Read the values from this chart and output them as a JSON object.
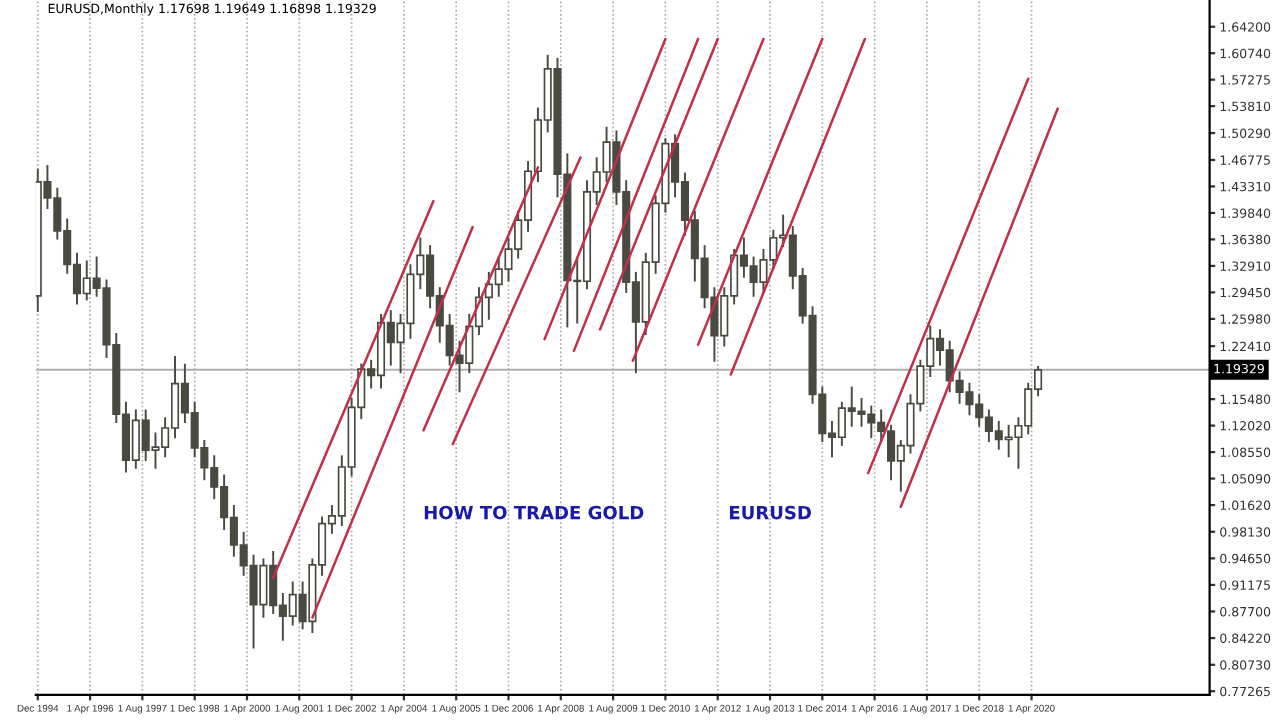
{
  "chart_data": {
    "type": "candlestick",
    "title": "EURUSD,Monthly 1.17698 1.19649 1.16898 1.19329",
    "annotations": [
      "HOW TO TRADE GOLD",
      "EURUSD"
    ],
    "color": "#4a4a40",
    "x": [
      "1994-12",
      "1995-03",
      "1995-06",
      "1995-09",
      "1995-12",
      "1996-03",
      "1996-06",
      "1996-09",
      "1996-12",
      "1997-03",
      "1997-06",
      "1997-09",
      "1997-12",
      "1998-03",
      "1998-06",
      "1998-09",
      "1998-12",
      "1999-03",
      "1999-06",
      "1999-09",
      "1999-12",
      "2000-03",
      "2000-06",
      "2000-09",
      "2000-12",
      "2001-03",
      "2001-06",
      "2001-09",
      "2001-12",
      "2002-03",
      "2002-06",
      "2002-09",
      "2002-12",
      "2003-03",
      "2003-06",
      "2003-09",
      "2003-12",
      "2004-03",
      "2004-06",
      "2004-09",
      "2004-12",
      "2005-03",
      "2005-06",
      "2005-09",
      "2005-12",
      "2006-03",
      "2006-06",
      "2006-09",
      "2006-12",
      "2007-03",
      "2007-06",
      "2007-09",
      "2007-12",
      "2008-03",
      "2008-06",
      "2008-09",
      "2008-12",
      "2009-03",
      "2009-06",
      "2009-09",
      "2009-12",
      "2010-03",
      "2010-06",
      "2010-09",
      "2010-12",
      "2011-03",
      "2011-06",
      "2011-09",
      "2011-12",
      "2012-03",
      "2012-06",
      "2012-09",
      "2012-12",
      "2013-03",
      "2013-06",
      "2013-09",
      "2013-12",
      "2014-03",
      "2014-06",
      "2014-09",
      "2014-12",
      "2015-03",
      "2015-06",
      "2015-09",
      "2015-12",
      "2016-03",
      "2016-06",
      "2016-09",
      "2016-12",
      "2017-03",
      "2017-06",
      "2017-09",
      "2017-12",
      "2018-03",
      "2018-06",
      "2018-09",
      "2018-12",
      "2019-03",
      "2019-06",
      "2019-09",
      "2019-12",
      "2020-03",
      "2020-06"
    ],
    "ohlc": [
      [
        1.29,
        1.455,
        1.27,
        1.439
      ],
      [
        1.439,
        1.46,
        1.405,
        1.418
      ],
      [
        1.418,
        1.43,
        1.365,
        1.375
      ],
      [
        1.375,
        1.39,
        1.32,
        1.331
      ],
      [
        1.331,
        1.345,
        1.28,
        1.293
      ],
      [
        1.293,
        1.335,
        1.285,
        1.313
      ],
      [
        1.313,
        1.34,
        1.29,
        1.3
      ],
      [
        1.3,
        1.31,
        1.21,
        1.226
      ],
      [
        1.226,
        1.24,
        1.125,
        1.135
      ],
      [
        1.135,
        1.15,
        1.06,
        1.075
      ],
      [
        1.075,
        1.14,
        1.065,
        1.127
      ],
      [
        1.127,
        1.14,
        1.075,
        1.088
      ],
      [
        1.088,
        1.11,
        1.065,
        1.092
      ],
      [
        1.092,
        1.13,
        1.08,
        1.117
      ],
      [
        1.117,
        1.21,
        1.105,
        1.175
      ],
      [
        1.175,
        1.2,
        1.125,
        1.137
      ],
      [
        1.137,
        1.15,
        1.08,
        1.091
      ],
      [
        1.091,
        1.1,
        1.05,
        1.065
      ],
      [
        1.065,
        1.08,
        1.025,
        1.04
      ],
      [
        1.04,
        1.055,
        0.985,
        1.0
      ],
      [
        1.0,
        1.015,
        0.95,
        0.964
      ],
      [
        0.964,
        0.98,
        0.925,
        0.937
      ],
      [
        0.937,
        0.95,
        0.83,
        0.886
      ],
      [
        0.886,
        0.945,
        0.87,
        0.937
      ],
      [
        0.937,
        0.955,
        0.875,
        0.885
      ],
      [
        0.885,
        0.9,
        0.84,
        0.871
      ],
      [
        0.871,
        0.915,
        0.86,
        0.899
      ],
      [
        0.899,
        0.915,
        0.855,
        0.864
      ],
      [
        0.864,
        0.945,
        0.85,
        0.938
      ],
      [
        0.938,
        1.0,
        0.925,
        0.992
      ],
      [
        0.992,
        1.015,
        0.98,
        1.002
      ],
      [
        1.002,
        1.08,
        0.99,
        1.066
      ],
      [
        1.066,
        1.155,
        1.055,
        1.144
      ],
      [
        1.144,
        1.2,
        1.13,
        1.194
      ],
      [
        1.194,
        1.205,
        1.17,
        1.186
      ],
      [
        1.186,
        1.265,
        1.17,
        1.255
      ],
      [
        1.255,
        1.27,
        1.2,
        1.229
      ],
      [
        1.229,
        1.265,
        1.19,
        1.254
      ],
      [
        1.254,
        1.33,
        1.235,
        1.318
      ],
      [
        1.318,
        1.365,
        1.3,
        1.343
      ],
      [
        1.343,
        1.355,
        1.275,
        1.29
      ],
      [
        1.29,
        1.3,
        1.23,
        1.251
      ],
      [
        1.251,
        1.265,
        1.2,
        1.212
      ],
      [
        1.212,
        1.23,
        1.165,
        1.202
      ],
      [
        1.202,
        1.265,
        1.19,
        1.25
      ],
      [
        1.25,
        1.3,
        1.24,
        1.288
      ],
      [
        1.288,
        1.32,
        1.26,
        1.305
      ],
      [
        1.305,
        1.34,
        1.29,
        1.325
      ],
      [
        1.325,
        1.365,
        1.31,
        1.351
      ],
      [
        1.351,
        1.4,
        1.34,
        1.389
      ],
      [
        1.389,
        1.465,
        1.375,
        1.453
      ],
      [
        1.453,
        1.535,
        1.44,
        1.52
      ],
      [
        1.52,
        1.604,
        1.505,
        1.587
      ],
      [
        1.587,
        1.6,
        1.42,
        1.449
      ],
      [
        1.449,
        1.475,
        1.25,
        1.31
      ],
      [
        1.31,
        1.34,
        1.255,
        1.309
      ],
      [
        1.309,
        1.44,
        1.3,
        1.426
      ],
      [
        1.426,
        1.47,
        1.41,
        1.452
      ],
      [
        1.452,
        1.51,
        1.44,
        1.491
      ],
      [
        1.491,
        1.505,
        1.41,
        1.426
      ],
      [
        1.426,
        1.44,
        1.295,
        1.308
      ],
      [
        1.308,
        1.32,
        1.19,
        1.256
      ],
      [
        1.256,
        1.345,
        1.24,
        1.334
      ],
      [
        1.334,
        1.42,
        1.32,
        1.411
      ],
      [
        1.411,
        1.495,
        1.4,
        1.489
      ],
      [
        1.489,
        1.5,
        1.42,
        1.439
      ],
      [
        1.439,
        1.45,
        1.37,
        1.389
      ],
      [
        1.389,
        1.4,
        1.31,
        1.339
      ],
      [
        1.339,
        1.355,
        1.275,
        1.288
      ],
      [
        1.288,
        1.3,
        1.205,
        1.238
      ],
      [
        1.238,
        1.3,
        1.225,
        1.29
      ],
      [
        1.29,
        1.35,
        1.28,
        1.343
      ],
      [
        1.343,
        1.365,
        1.315,
        1.329
      ],
      [
        1.329,
        1.34,
        1.29,
        1.308
      ],
      [
        1.308,
        1.35,
        1.295,
        1.337
      ],
      [
        1.337,
        1.375,
        1.325,
        1.366
      ],
      [
        1.366,
        1.395,
        1.355,
        1.369
      ],
      [
        1.369,
        1.38,
        1.3,
        1.316
      ],
      [
        1.316,
        1.325,
        1.255,
        1.264
      ],
      [
        1.264,
        1.275,
        1.15,
        1.161
      ],
      [
        1.161,
        1.17,
        1.1,
        1.11
      ],
      [
        1.11,
        1.125,
        1.08,
        1.105
      ],
      [
        1.105,
        1.15,
        1.095,
        1.143
      ],
      [
        1.143,
        1.17,
        1.12,
        1.139
      ],
      [
        1.139,
        1.155,
        1.12,
        1.135
      ],
      [
        1.135,
        1.145,
        1.105,
        1.124
      ],
      [
        1.124,
        1.14,
        1.1,
        1.113
      ],
      [
        1.113,
        1.12,
        1.05,
        1.074
      ],
      [
        1.074,
        1.1,
        1.035,
        1.094
      ],
      [
        1.094,
        1.16,
        1.085,
        1.149
      ],
      [
        1.149,
        1.205,
        1.14,
        1.198
      ],
      [
        1.198,
        1.25,
        1.185,
        1.234
      ],
      [
        1.234,
        1.245,
        1.2,
        1.219
      ],
      [
        1.219,
        1.23,
        1.165,
        1.179
      ],
      [
        1.179,
        1.19,
        1.15,
        1.164
      ],
      [
        1.164,
        1.175,
        1.135,
        1.148
      ],
      [
        1.148,
        1.16,
        1.12,
        1.131
      ],
      [
        1.131,
        1.14,
        1.1,
        1.113
      ],
      [
        1.113,
        1.125,
        1.09,
        1.102
      ],
      [
        1.102,
        1.12,
        1.08,
        1.105
      ],
      [
        1.105,
        1.13,
        1.065,
        1.12
      ],
      [
        1.12,
        1.175,
        1.11,
        1.168
      ],
      [
        1.168,
        1.197,
        1.16,
        1.193
      ]
    ],
    "series": [
      {
        "type": "line",
        "color": "#c0304a",
        "x": [
          "2000-12",
          "2005-01"
        ],
        "values": [
          0.921,
          1.414
        ]
      },
      {
        "type": "line",
        "color": "#c0304a",
        "x": [
          "2001-12",
          "2006-01"
        ],
        "values": [
          0.869,
          1.38
        ]
      },
      {
        "type": "line",
        "color": "#c0304a",
        "x": [
          "2004-10",
          "2007-09"
        ],
        "values": [
          1.114,
          1.458
        ]
      },
      {
        "type": "line",
        "color": "#c0304a",
        "x": [
          "2005-07",
          "2008-10"
        ],
        "values": [
          1.096,
          1.471
        ]
      },
      {
        "type": "line",
        "color": "#c0304a",
        "x": [
          "2007-11",
          "2010-12"
        ],
        "values": [
          1.233,
          1.626
        ]
      },
      {
        "type": "line",
        "color": "#c0304a",
        "x": [
          "2008-08",
          "2011-10"
        ],
        "values": [
          1.218,
          1.626
        ]
      },
      {
        "type": "line",
        "color": "#c0304a",
        "x": [
          "2009-04",
          "2012-04"
        ],
        "values": [
          1.246,
          1.626
        ]
      },
      {
        "type": "line",
        "color": "#c0304a",
        "x": [
          "2010-02",
          "2013-06"
        ],
        "values": [
          1.205,
          1.626
        ]
      },
      {
        "type": "line",
        "color": "#c0304a",
        "x": [
          "2011-10",
          "2014-12"
        ],
        "values": [
          1.226,
          1.626
        ]
      },
      {
        "type": "line",
        "color": "#c0304a",
        "x": [
          "2012-08",
          "2016-01"
        ],
        "values": [
          1.187,
          1.626
        ]
      },
      {
        "type": "line",
        "color": "#c0304a",
        "x": [
          "2016-02",
          "2020-03"
        ],
        "values": [
          1.058,
          1.574
        ]
      },
      {
        "type": "line",
        "color": "#c0304a",
        "x": [
          "2016-12",
          "2020-12"
        ],
        "values": [
          1.014,
          1.535
        ]
      }
    ],
    "ref_lines": [
      {
        "axis": "y",
        "value": 1.19329,
        "label": "1.19329",
        "color": "#b0b0b0"
      }
    ],
    "xlim": [
      "1994-11-13",
      "2024-10-15"
    ],
    "xticks": [
      {
        "value": "1994-12-01",
        "label": "Dec 1994"
      },
      {
        "value": "1996-04-01",
        "label": "1 Apr 1996"
      },
      {
        "value": "1997-08-01",
        "label": "1 Aug 1997"
      },
      {
        "value": "1998-12-01",
        "label": "1 Dec 1998"
      },
      {
        "value": "2000-04-01",
        "label": "1 Apr 2000"
      },
      {
        "value": "2001-08-01",
        "label": "1 Aug 2001"
      },
      {
        "value": "2002-12-01",
        "label": "1 Dec 2002"
      },
      {
        "value": "2004-04-01",
        "label": "1 Apr 2004"
      },
      {
        "value": "2005-08-01",
        "label": "1 Aug 2005"
      },
      {
        "value": "2006-12-01",
        "label": "1 Dec 2006"
      },
      {
        "value": "2008-04-01",
        "label": "1 Apr 2008"
      },
      {
        "value": "2009-08-01",
        "label": "1 Aug 2009"
      },
      {
        "value": "2010-12-01",
        "label": "1 Dec 2010"
      },
      {
        "value": "2012-04-01",
        "label": "1 Apr 2012"
      },
      {
        "value": "2013-08-01",
        "label": "1 Aug 2013"
      },
      {
        "value": "2014-12-01",
        "label": "1 Dec 2014"
      },
      {
        "value": "2016-04-01",
        "label": "1 Apr 2016"
      },
      {
        "value": "2017-08-01",
        "label": "1 Aug 2017"
      },
      {
        "value": "2018-12-01",
        "label": "1 Dec 2018"
      },
      {
        "value": "2020-04-01",
        "label": "1 Apr 2020"
      }
    ],
    "ylim": [
      0.768,
      1.677
    ],
    "yticks": [
      {
        "value": 0.77265,
        "label": "0.77265"
      },
      {
        "value": 0.8073,
        "label": "0.80730"
      },
      {
        "value": 0.8422,
        "label": "0.84220"
      },
      {
        "value": 0.877,
        "label": "0.87700"
      },
      {
        "value": 0.91175,
        "label": "0.91175"
      },
      {
        "value": 0.9465,
        "label": "0.94650"
      },
      {
        "value": 0.9813,
        "label": "0.98130"
      },
      {
        "value": 1.0162,
        "label": "1.01620"
      },
      {
        "value": 1.0509,
        "label": "1.05090"
      },
      {
        "value": 1.0855,
        "label": "1.08550"
      },
      {
        "value": 1.1202,
        "label": "1.12020"
      },
      {
        "value": 1.1548,
        "label": "1.15480"
      },
      {
        "value": 1.2241,
        "label": "1.22410"
      },
      {
        "value": 1.2598,
        "label": "1.25980"
      },
      {
        "value": 1.2945,
        "label": "1.29450"
      },
      {
        "value": 1.3291,
        "label": "1.32910"
      },
      {
        "value": 1.3638,
        "label": "1.36380"
      },
      {
        "value": 1.3984,
        "label": "1.39840"
      },
      {
        "value": 1.4331,
        "label": "1.43310"
      },
      {
        "value": 1.46775,
        "label": "1.46775"
      },
      {
        "value": 1.5029,
        "label": "1.50290"
      },
      {
        "value": 1.5381,
        "label": "1.53810"
      },
      {
        "value": 1.57275,
        "label": "1.57275"
      },
      {
        "value": 1.6074,
        "label": "1.60740"
      },
      {
        "value": 1.642,
        "label": "1.64200"
      }
    ],
    "grid": "x"
  }
}
